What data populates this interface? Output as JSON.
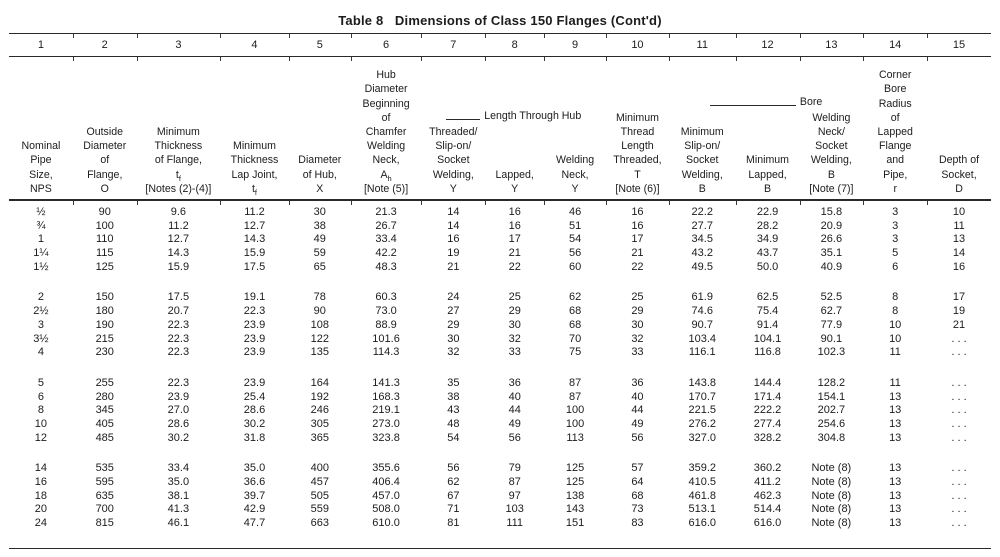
{
  "title": "Table 8   Dimensions of Class 150 Flanges (Cont'd)",
  "column_numbers": [
    "1",
    "2",
    "3",
    "4",
    "5",
    "6",
    "7",
    "8",
    "9",
    "10",
    "11",
    "12",
    "13",
    "14",
    "15"
  ],
  "group_headers": {
    "length_through_hub": "Length Through Hub",
    "bore": "Bore"
  },
  "columns": [
    {
      "label": "Nominal\nPipe\nSize,\nNPS"
    },
    {
      "label": "Outside\nDiameter\nof\nFlange,\nO"
    },
    {
      "label": "Minimum\nThickness\nof Flange,",
      "sym": "t",
      "sub": "f",
      "note": "[Notes (2)-(4)]"
    },
    {
      "label": "Minimum\nThickness\nLap Joint,",
      "sym": "t",
      "sub": "f",
      "note": ""
    },
    {
      "label": "Diameter\nof Hub,\nX"
    },
    {
      "label": "Hub\nDiameter\nBeginning\nof\nChamfer\nWelding\nNeck,",
      "sym": "A",
      "sub": "h",
      "note": "[Note (5)]"
    },
    {
      "label": "Threaded/\nSlip-on/\nSocket\nWelding,\nY"
    },
    {
      "label": "Lapped,\nY"
    },
    {
      "label": "Welding\nNeck,\nY"
    },
    {
      "label": "Minimum\nThread\nLength\nThreaded,\nT",
      "note": "[Note (6)]"
    },
    {
      "label": "Minimum\nSlip-on/\nSocket\nWelding,\nB"
    },
    {
      "label": "Minimum\nLapped,\nB"
    },
    {
      "label": "Welding\nNeck/\nSocket\nWelding,\nB",
      "note": "[Note (7)]"
    },
    {
      "label": "Corner\nBore\nRadius\nof\nLapped\nFlange\nand\nPipe,\nr"
    },
    {
      "label": "Depth of\nSocket,\nD"
    }
  ],
  "row_groups": [
    {
      "rows": [
        [
          "½",
          "90",
          "9.6",
          "11.2",
          "30",
          "21.3",
          "14",
          "16",
          "46",
          "16",
          "22.2",
          "22.9",
          "15.8",
          "3",
          "10"
        ],
        [
          "¾",
          "100",
          "11.2",
          "12.7",
          "38",
          "26.7",
          "14",
          "16",
          "51",
          "16",
          "27.7",
          "28.2",
          "20.9",
          "3",
          "11"
        ],
        [
          "1",
          "110",
          "12.7",
          "14.3",
          "49",
          "33.4",
          "16",
          "17",
          "54",
          "17",
          "34.5",
          "34.9",
          "26.6",
          "3",
          "13"
        ],
        [
          "1¼",
          "115",
          "14.3",
          "15.9",
          "59",
          "42.2",
          "19",
          "21",
          "56",
          "21",
          "43.2",
          "43.7",
          "35.1",
          "5",
          "14"
        ],
        [
          "1½",
          "125",
          "15.9",
          "17.5",
          "65",
          "48.3",
          "21",
          "22",
          "60",
          "22",
          "49.5",
          "50.0",
          "40.9",
          "6",
          "16"
        ]
      ]
    },
    {
      "rows": [
        [
          "2",
          "150",
          "17.5",
          "19.1",
          "78",
          "60.3",
          "24",
          "25",
          "62",
          "25",
          "61.9",
          "62.5",
          "52.5",
          "8",
          "17"
        ],
        [
          "2½",
          "180",
          "20.7",
          "22.3",
          "90",
          "73.0",
          "27",
          "29",
          "68",
          "29",
          "74.6",
          "75.4",
          "62.7",
          "8",
          "19"
        ],
        [
          "3",
          "190",
          "22.3",
          "23.9",
          "108",
          "88.9",
          "29",
          "30",
          "68",
          "30",
          "90.7",
          "91.4",
          "77.9",
          "10",
          "21"
        ],
        [
          "3½",
          "215",
          "22.3",
          "23.9",
          "122",
          "101.6",
          "30",
          "32",
          "70",
          "32",
          "103.4",
          "104.1",
          "90.1",
          "10",
          ". . ."
        ],
        [
          "4",
          "230",
          "22.3",
          "23.9",
          "135",
          "114.3",
          "32",
          "33",
          "75",
          "33",
          "116.1",
          "116.8",
          "102.3",
          "11",
          ". . ."
        ]
      ]
    },
    {
      "rows": [
        [
          "5",
          "255",
          "22.3",
          "23.9",
          "164",
          "141.3",
          "35",
          "36",
          "87",
          "36",
          "143.8",
          "144.4",
          "128.2",
          "11",
          ". . ."
        ],
        [
          "6",
          "280",
          "23.9",
          "25.4",
          "192",
          "168.3",
          "38",
          "40",
          "87",
          "40",
          "170.7",
          "171.4",
          "154.1",
          "13",
          ". . ."
        ],
        [
          "8",
          "345",
          "27.0",
          "28.6",
          "246",
          "219.1",
          "43",
          "44",
          "100",
          "44",
          "221.5",
          "222.2",
          "202.7",
          "13",
          ". . ."
        ],
        [
          "10",
          "405",
          "28.6",
          "30.2",
          "305",
          "273.0",
          "48",
          "49",
          "100",
          "49",
          "276.2",
          "277.4",
          "254.6",
          "13",
          ". . ."
        ],
        [
          "12",
          "485",
          "30.2",
          "31.8",
          "365",
          "323.8",
          "54",
          "56",
          "113",
          "56",
          "327.0",
          "328.2",
          "304.8",
          "13",
          ". . ."
        ]
      ]
    },
    {
      "rows": [
        [
          "14",
          "535",
          "33.4",
          "35.0",
          "400",
          "355.6",
          "56",
          "79",
          "125",
          "57",
          "359.2",
          "360.2",
          "Note (8)",
          "13",
          ". . ."
        ],
        [
          "16",
          "595",
          "35.0",
          "36.6",
          "457",
          "406.4",
          "62",
          "87",
          "125",
          "64",
          "410.5",
          "411.2",
          "Note (8)",
          "13",
          ". . ."
        ],
        [
          "18",
          "635",
          "38.1",
          "39.7",
          "505",
          "457.0",
          "67",
          "97",
          "138",
          "68",
          "461.8",
          "462.3",
          "Note (8)",
          "13",
          ". . ."
        ],
        [
          "20",
          "700",
          "41.3",
          "42.9",
          "559",
          "508.0",
          "71",
          "103",
          "143",
          "73",
          "513.1",
          "514.4",
          "Note (8)",
          "13",
          ". . ."
        ],
        [
          "24",
          "815",
          "46.1",
          "47.7",
          "663",
          "610.0",
          "81",
          "111",
          "151",
          "83",
          "616.0",
          "616.0",
          "Note (8)",
          "13",
          ". . ."
        ]
      ]
    }
  ]
}
